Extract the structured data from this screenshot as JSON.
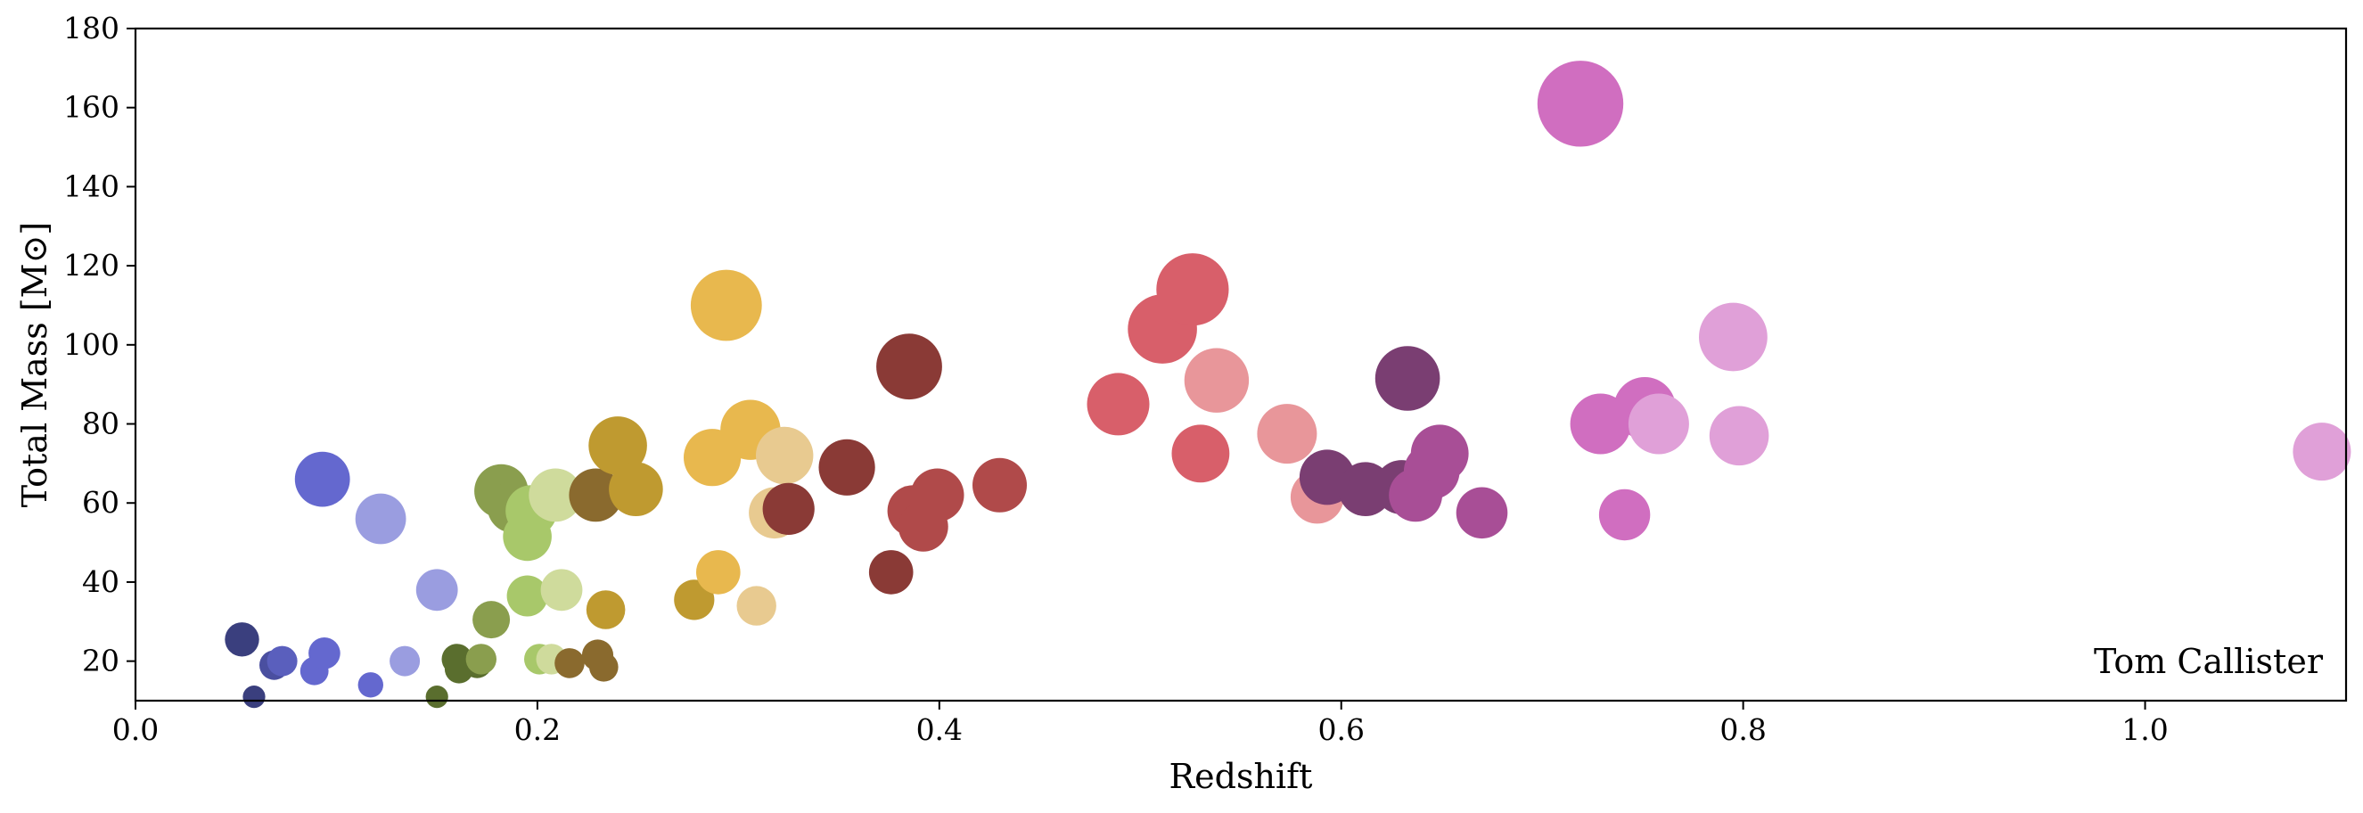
{
  "chart_data": {
    "type": "scatter",
    "title": "",
    "xlabel": "Redshift",
    "ylabel": "Total Mass [M⊙]",
    "xlim": [
      0.0,
      1.1
    ],
    "ylim": [
      10,
      180
    ],
    "xticks": [
      "0.0",
      "0.2",
      "0.4",
      "0.6",
      "0.8",
      "1.0"
    ],
    "xtick_values": [
      0.0,
      0.2,
      0.4,
      0.6,
      0.8,
      1.0
    ],
    "yticks": [
      "20",
      "40",
      "60",
      "80",
      "100",
      "120",
      "140",
      "160",
      "180"
    ],
    "ytick_values": [
      20,
      40,
      60,
      80,
      100,
      120,
      140,
      160,
      180
    ],
    "grid": false,
    "annotation": "Tom Callister",
    "annotation_position": "bottom-right",
    "points": [
      {
        "x": 0.053,
        "y": 25.5,
        "color": "#3a3f7e"
      },
      {
        "x": 0.059,
        "y": 11,
        "color": "#3a3f7e"
      },
      {
        "x": 0.069,
        "y": 19,
        "color": "#4a4fa0"
      },
      {
        "x": 0.073,
        "y": 20,
        "color": "#5a5fbd"
      },
      {
        "x": 0.089,
        "y": 17.5,
        "color": "#6468cf"
      },
      {
        "x": 0.093,
        "y": 66,
        "color": "#6468cf"
      },
      {
        "x": 0.094,
        "y": 22,
        "color": "#6468cf"
      },
      {
        "x": 0.117,
        "y": 14,
        "color": "#6468cf"
      },
      {
        "x": 0.122,
        "y": 56,
        "color": "#9a9de0"
      },
      {
        "x": 0.134,
        "y": 20,
        "color": "#9a9de0"
      },
      {
        "x": 0.15,
        "y": 38,
        "color": "#9a9de0"
      },
      {
        "x": 0.15,
        "y": 11,
        "color": "#5a6e2e"
      },
      {
        "x": 0.16,
        "y": 20.5,
        "color": "#5a6e2e"
      },
      {
        "x": 0.161,
        "y": 18,
        "color": "#5a6e2e"
      },
      {
        "x": 0.17,
        "y": 19.5,
        "color": "#5a6e2e"
      },
      {
        "x": 0.172,
        "y": 20.5,
        "color": "#8a9e4e"
      },
      {
        "x": 0.177,
        "y": 30.5,
        "color": "#8a9e4e"
      },
      {
        "x": 0.182,
        "y": 63,
        "color": "#8a9e4e"
      },
      {
        "x": 0.188,
        "y": 59,
        "color": "#8a9e4e"
      },
      {
        "x": 0.195,
        "y": 51.5,
        "color": "#a8c86a"
      },
      {
        "x": 0.195,
        "y": 36.5,
        "color": "#a8c86a"
      },
      {
        "x": 0.197,
        "y": 58,
        "color": "#a8c86a"
      },
      {
        "x": 0.201,
        "y": 20.5,
        "color": "#a8c86a"
      },
      {
        "x": 0.207,
        "y": 20.5,
        "color": "#cfdb9c"
      },
      {
        "x": 0.209,
        "y": 62,
        "color": "#cfdb9c"
      },
      {
        "x": 0.212,
        "y": 38,
        "color": "#cfdb9c"
      },
      {
        "x": 0.216,
        "y": 19.5,
        "color": "#8a6a2e"
      },
      {
        "x": 0.229,
        "y": 62,
        "color": "#8a6a2e"
      },
      {
        "x": 0.23,
        "y": 21.5,
        "color": "#8a6a2e"
      },
      {
        "x": 0.233,
        "y": 18.5,
        "color": "#8a6a2e"
      },
      {
        "x": 0.234,
        "y": 33,
        "color": "#bf9a30"
      },
      {
        "x": 0.24,
        "y": 74.5,
        "color": "#bf9a30"
      },
      {
        "x": 0.249,
        "y": 63.5,
        "color": "#bf9a30"
      },
      {
        "x": 0.278,
        "y": 35.5,
        "color": "#bf9a30"
      },
      {
        "x": 0.287,
        "y": 71.5,
        "color": "#e8b84e"
      },
      {
        "x": 0.29,
        "y": 42.5,
        "color": "#e8b84e"
      },
      {
        "x": 0.294,
        "y": 110,
        "color": "#e8b84e"
      },
      {
        "x": 0.306,
        "y": 78.5,
        "color": "#e8b84e"
      },
      {
        "x": 0.309,
        "y": 34,
        "color": "#e8ca90"
      },
      {
        "x": 0.318,
        "y": 57.5,
        "color": "#e8ca90"
      },
      {
        "x": 0.323,
        "y": 72,
        "color": "#e8ca90"
      },
      {
        "x": 0.325,
        "y": 58.5,
        "color": "#8a3a36"
      },
      {
        "x": 0.354,
        "y": 69,
        "color": "#8a3a36"
      },
      {
        "x": 0.376,
        "y": 42.5,
        "color": "#8a3a36"
      },
      {
        "x": 0.385,
        "y": 94.5,
        "color": "#8a3a36"
      },
      {
        "x": 0.387,
        "y": 58,
        "color": "#b04a4a"
      },
      {
        "x": 0.392,
        "y": 54,
        "color": "#b04a4a"
      },
      {
        "x": 0.399,
        "y": 62,
        "color": "#b04a4a"
      },
      {
        "x": 0.43,
        "y": 64.5,
        "color": "#b04a4a"
      },
      {
        "x": 0.489,
        "y": 85,
        "color": "#d85f6a"
      },
      {
        "x": 0.511,
        "y": 104,
        "color": "#d85f6a"
      },
      {
        "x": 0.526,
        "y": 114,
        "color": "#d85f6a"
      },
      {
        "x": 0.53,
        "y": 72.5,
        "color": "#d85f6a"
      },
      {
        "x": 0.538,
        "y": 91,
        "color": "#e8969a"
      },
      {
        "x": 0.573,
        "y": 77.5,
        "color": "#e8969a"
      },
      {
        "x": 0.588,
        "y": 61.5,
        "color": "#e8969a"
      },
      {
        "x": 0.593,
        "y": 66.5,
        "color": "#7a3e72"
      },
      {
        "x": 0.612,
        "y": 63.5,
        "color": "#7a3e72"
      },
      {
        "x": 0.63,
        "y": 64,
        "color": "#7a3e72"
      },
      {
        "x": 0.633,
        "y": 91.5,
        "color": "#7a3e72"
      },
      {
        "x": 0.637,
        "y": 62,
        "color": "#a84e96"
      },
      {
        "x": 0.645,
        "y": 68,
        "color": "#a84e96"
      },
      {
        "x": 0.649,
        "y": 72.5,
        "color": "#a84e96"
      },
      {
        "x": 0.67,
        "y": 57.5,
        "color": "#a84e96"
      },
      {
        "x": 0.719,
        "y": 161,
        "color": "#d06ec0"
      },
      {
        "x": 0.729,
        "y": 80,
        "color": "#d06ec0"
      },
      {
        "x": 0.741,
        "y": 57,
        "color": "#d06ec0"
      },
      {
        "x": 0.751,
        "y": 84,
        "color": "#d06ec0"
      },
      {
        "x": 0.758,
        "y": 80,
        "color": "#e0a0d8"
      },
      {
        "x": 0.795,
        "y": 102,
        "color": "#e0a0d8"
      },
      {
        "x": 0.798,
        "y": 77,
        "color": "#e0a0d8"
      },
      {
        "x": 1.088,
        "y": 73,
        "color": "#e0a0d8"
      }
    ]
  }
}
